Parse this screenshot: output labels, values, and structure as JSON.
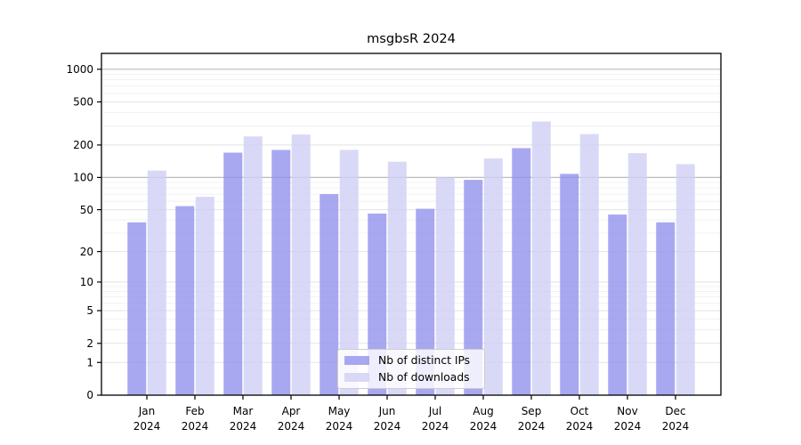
{
  "chart_data": {
    "type": "bar",
    "title": "msgbsR 2024",
    "categories": [
      "Jan",
      "Feb",
      "Mar",
      "Apr",
      "May",
      "Jun",
      "Jul",
      "Aug",
      "Sep",
      "Oct",
      "Nov",
      "Dec"
    ],
    "year_label": "2024",
    "series": [
      {
        "name": "Nb of distinct IPs",
        "color": "rgba(146,146,237,0.8)",
        "values": [
          38,
          54,
          170,
          180,
          70,
          46,
          51,
          95,
          187,
          108,
          45,
          38
        ]
      },
      {
        "name": "Nb of downloads",
        "color": "rgba(208,208,245,0.8)",
        "values": [
          116,
          66,
          240,
          250,
          180,
          140,
          100,
          150,
          330,
          252,
          168,
          133
        ]
      }
    ],
    "yticks": [
      0,
      1,
      2,
      5,
      10,
      20,
      50,
      100,
      200,
      500,
      1000
    ],
    "ylim": [
      0,
      1400
    ],
    "yscale": "log10(value+1)",
    "xlabel": "",
    "ylabel": "",
    "grid": "both",
    "legend_position": "lower center",
    "colors": {
      "axis": "#000000",
      "grid_major": "#bbbbbb",
      "grid_tick": "#e3e3e3",
      "grid_minor": "#f1f1f1",
      "text": "#000000"
    }
  }
}
